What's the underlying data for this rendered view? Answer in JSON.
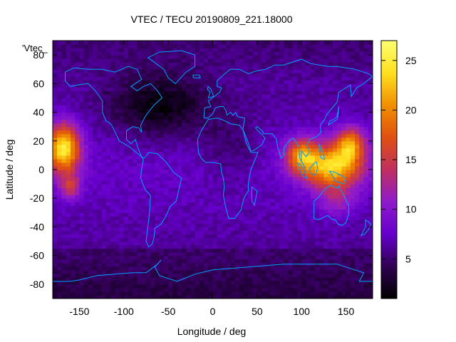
{
  "chart_data": {
    "type": "heatmap",
    "title": "VTEC / TECU 20190809_221.18000",
    "xlabel": "Longitude / deg",
    "ylabel": "Latitude / deg",
    "xlim": [
      -180,
      180
    ],
    "ylim": [
      -90,
      90
    ],
    "x_ticks": [
      -150,
      -100,
      -50,
      0,
      50,
      100,
      150
    ],
    "y_ticks": [
      -80,
      -60,
      -40,
      -20,
      0,
      20,
      40,
      60,
      80
    ],
    "colorbar": {
      "range": [
        1,
        27
      ],
      "ticks": [
        5,
        10,
        15,
        20,
        25
      ],
      "palette": [
        "#000000",
        "#300052",
        "#6600cc",
        "#8f1acc",
        "#c03060",
        "#e05010",
        "#f09000",
        "#ffe020",
        "#ffff70"
      ]
    },
    "stray_label": "'Vtec_",
    "grid_resolution": {
      "lon_step": 5,
      "lat_step": 2.5
    },
    "anomaly_centers": [
      {
        "lon": -168,
        "lat": 15,
        "peak_tecu": 25,
        "extent_lon": 22,
        "extent_lat": 20
      },
      {
        "lon": -160,
        "lat": -12,
        "peak_tecu": 14,
        "extent_lon": 14,
        "extent_lat": 10
      },
      {
        "lon": 135,
        "lat": 2,
        "peak_tecu": 23,
        "extent_lon": 38,
        "extent_lat": 18
      },
      {
        "lon": 100,
        "lat": 10,
        "peak_tecu": 19,
        "extent_lon": 22,
        "extent_lat": 14
      },
      {
        "lon": 155,
        "lat": 18,
        "peak_tecu": 19,
        "extent_lon": 20,
        "extent_lat": 14
      },
      {
        "lon": 140,
        "lat": -22,
        "peak_tecu": 11,
        "extent_lon": 25,
        "extent_lat": 12
      }
    ],
    "background_tecu": {
      "equator": 7.5,
      "north_polar": 5,
      "south_polar": 3.5,
      "atlantic_minimum_lon": -60,
      "atlantic_minimum_lat": 45,
      "atlantic_minimum_tecu": 2
    },
    "coastline_color": "#00a0ff"
  }
}
